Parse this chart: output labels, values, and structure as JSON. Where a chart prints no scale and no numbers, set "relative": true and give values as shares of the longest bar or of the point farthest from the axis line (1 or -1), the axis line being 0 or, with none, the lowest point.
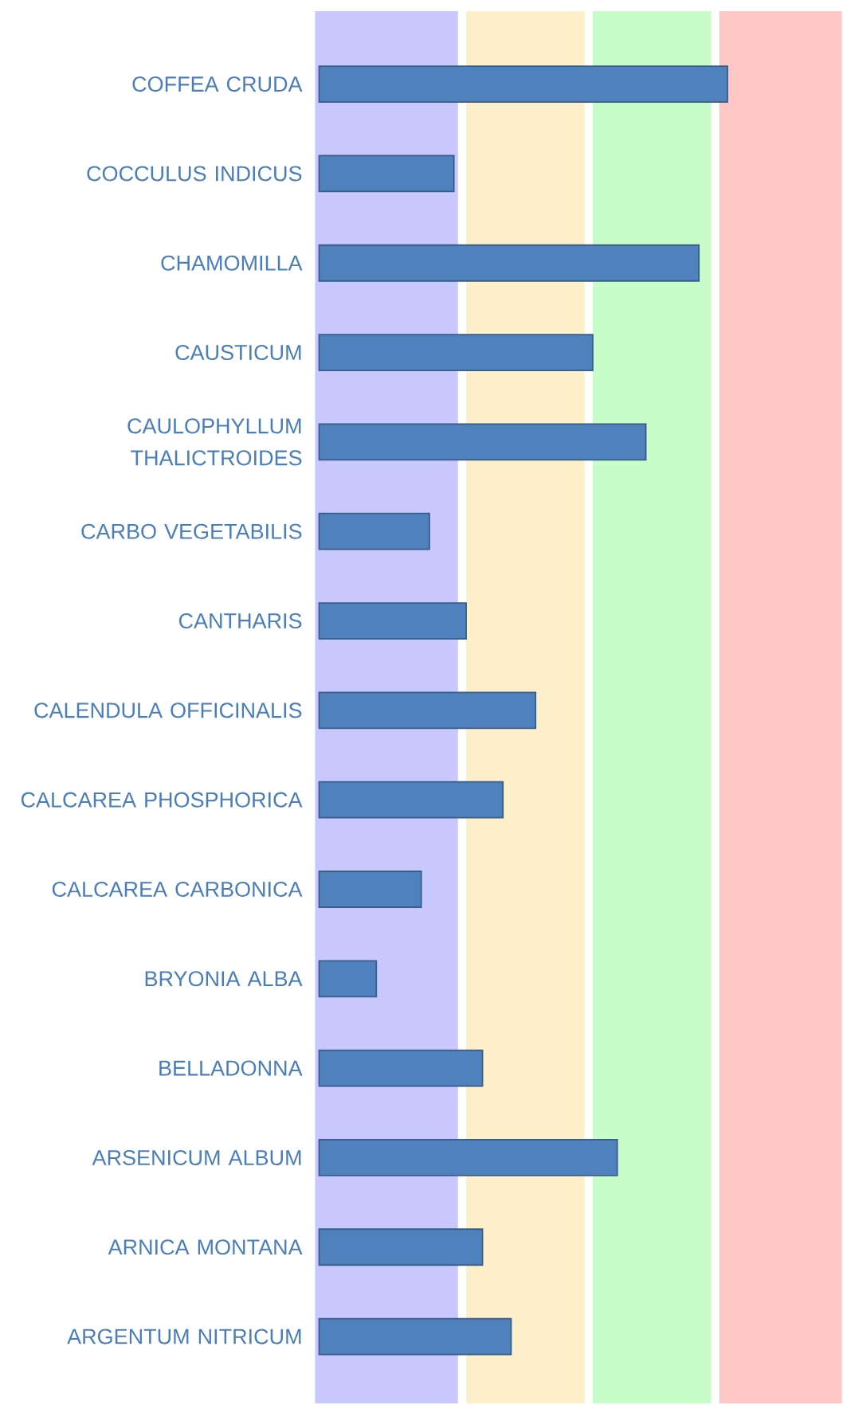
{
  "chart_data": {
    "type": "bar",
    "orientation": "horizontal",
    "relative": true,
    "categories": [
      "COFFEA CRUDA",
      "COCCULUS INDICUS",
      "CHAMOMILLA",
      "CAUSTICUM",
      "CAULOPHYLLUM THALICTROIDES",
      "CARBO VEGETABILIS",
      "CANTHARIS",
      "CALENDULA OFFICINALIS",
      "CALCAREA PHOSPHORICA",
      "CALCAREA CARBONICA",
      "BRYONIA ALBA",
      "BELLADONNA",
      "ARSENICUM ALBUM",
      "ARNICA MONTANA",
      "ARGENTUM NITRICUM"
    ],
    "values": [
      1,
      0.33,
      0.93,
      0.67,
      0.8,
      0.27,
      0.36,
      0.53,
      0.45,
      0.25,
      0.14,
      0.4,
      0.73,
      0.4,
      0.47
    ],
    "color": "#4f81bd",
    "bands": [
      {
        "axis": "x",
        "from": -0.01,
        "to": 0.34,
        "color": "#c8c8ff"
      },
      {
        "axis": "x",
        "from": 0.36,
        "to": 0.65,
        "color": "#fdefc9"
      },
      {
        "axis": "x",
        "from": 0.67,
        "to": 0.96,
        "color": "#c8fcc8"
      },
      {
        "axis": "x",
        "from": 0.98,
        "to": 1.28,
        "color": "#ffc6c6"
      }
    ]
  }
}
